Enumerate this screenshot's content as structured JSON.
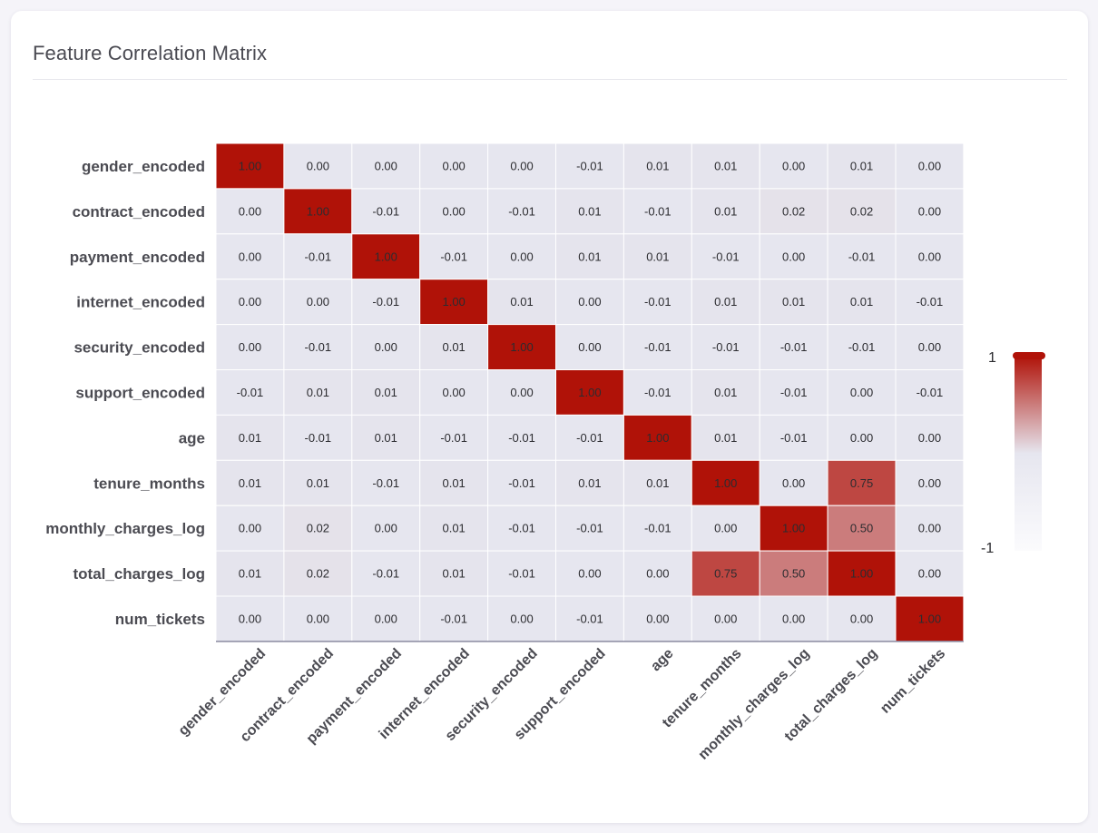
{
  "card": {
    "title": "Feature Correlation Matrix"
  },
  "colors": {
    "high": "#b01208",
    "neutral": "#e6e6ef",
    "low": "#fbfbfd",
    "grid_line": "#ffffff",
    "axis_line": "#8a8aa0"
  },
  "chart_data": {
    "type": "heatmap",
    "title": "Feature Correlation Matrix",
    "labels": [
      "gender_encoded",
      "contract_encoded",
      "payment_encoded",
      "internet_encoded",
      "security_encoded",
      "support_encoded",
      "age",
      "tenure_months",
      "monthly_charges_log",
      "total_charges_log",
      "num_tickets"
    ],
    "values": [
      [
        1.0,
        0.0,
        0.0,
        0.0,
        0.0,
        -0.01,
        0.01,
        0.01,
        0.0,
        0.01,
        0.0
      ],
      [
        0.0,
        1.0,
        -0.01,
        0.0,
        -0.01,
        0.01,
        -0.01,
        0.01,
        0.02,
        0.02,
        0.0
      ],
      [
        0.0,
        -0.01,
        1.0,
        -0.01,
        0.0,
        0.01,
        0.01,
        -0.01,
        0.0,
        -0.01,
        0.0
      ],
      [
        0.0,
        0.0,
        -0.01,
        1.0,
        0.01,
        0.0,
        -0.01,
        0.01,
        0.01,
        0.01,
        -0.01
      ],
      [
        0.0,
        -0.01,
        0.0,
        0.01,
        1.0,
        0.0,
        -0.01,
        -0.01,
        -0.01,
        -0.01,
        0.0
      ],
      [
        -0.01,
        0.01,
        0.01,
        0.0,
        0.0,
        1.0,
        -0.01,
        0.01,
        -0.01,
        0.0,
        -0.01
      ],
      [
        0.01,
        -0.01,
        0.01,
        -0.01,
        -0.01,
        -0.01,
        1.0,
        0.01,
        -0.01,
        0.0,
        0.0
      ],
      [
        0.01,
        0.01,
        -0.01,
        0.01,
        -0.01,
        0.01,
        0.01,
        1.0,
        0.0,
        0.75,
        0.0
      ],
      [
        0.0,
        0.02,
        0.0,
        0.01,
        -0.01,
        -0.01,
        -0.01,
        0.0,
        1.0,
        0.5,
        0.0
      ],
      [
        0.01,
        0.02,
        -0.01,
        0.01,
        -0.01,
        0.0,
        0.0,
        0.75,
        0.5,
        1.0,
        0.0
      ],
      [
        0.0,
        0.0,
        0.0,
        -0.01,
        0.0,
        -0.01,
        0.0,
        0.0,
        0.0,
        0.0,
        1.0
      ]
    ],
    "value_format": "0.00",
    "color_range": [
      -1,
      1
    ],
    "colorbar": {
      "max_label": "1",
      "min_label": "-1"
    },
    "colorbar_position": "right",
    "x_label_rotation_deg": -45,
    "grid": true
  }
}
